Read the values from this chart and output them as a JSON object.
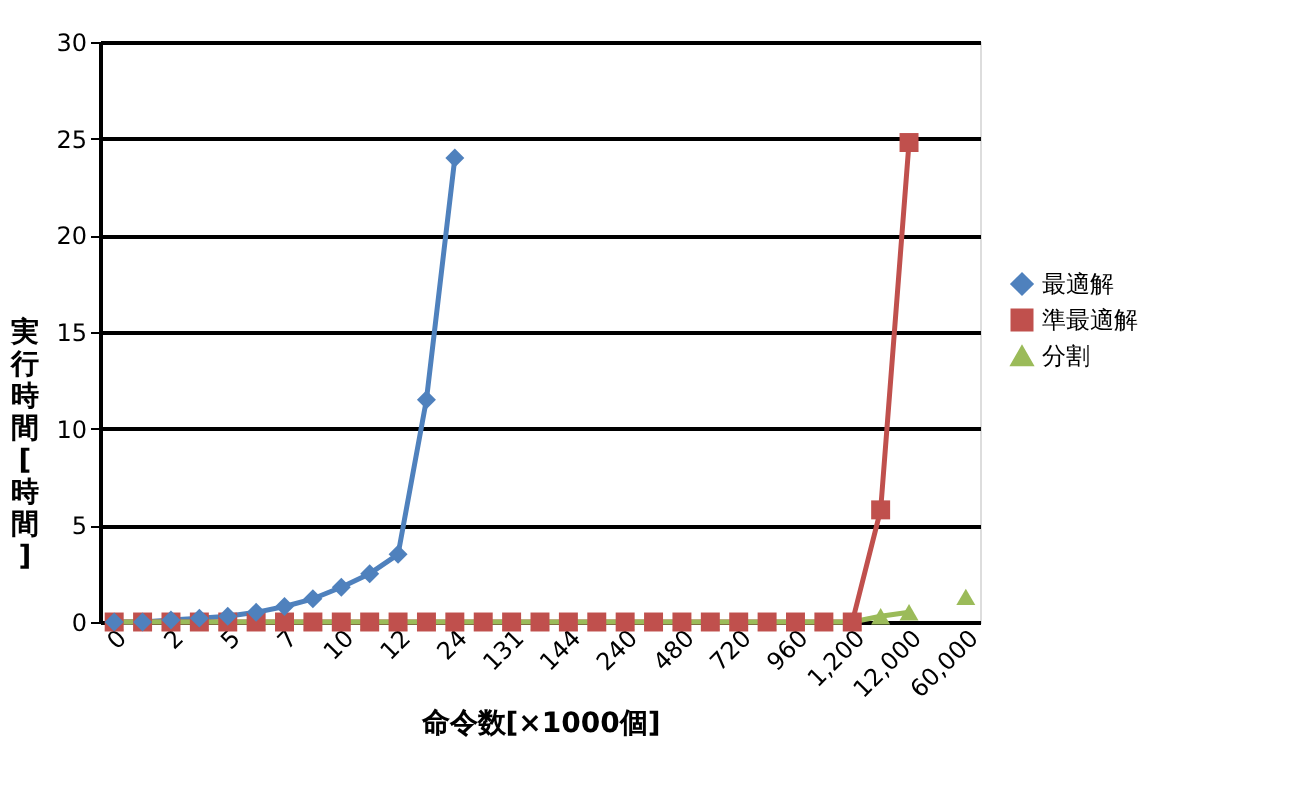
{
  "chart_data": {
    "type": "line",
    "xlabel": "命令数[×1000個]",
    "ylabel": "実行時間[時間]",
    "categories": [
      "0",
      null,
      "2",
      null,
      "5",
      null,
      "7",
      null,
      "10",
      null,
      "12",
      null,
      "24",
      null,
      "131",
      null,
      "144",
      null,
      "240",
      null,
      "480",
      null,
      "720",
      null,
      "960",
      null,
      "1,200",
      null,
      "12,000",
      null,
      "60,000"
    ],
    "series": [
      {
        "name": "最適解",
        "color": "#4f81bd",
        "marker": "diamond",
        "values": [
          0,
          0,
          0.1,
          0.2,
          0.3,
          0.5,
          0.8,
          1.2,
          1.8,
          2.5,
          3.5,
          11.5,
          24.0,
          null,
          null,
          null,
          null,
          null,
          null,
          null,
          null,
          null,
          null,
          null,
          null,
          null,
          null,
          null,
          null,
          null,
          null
        ]
      },
      {
        "name": "準最適解",
        "color": "#c0504d",
        "marker": "square",
        "values": [
          0,
          0,
          0,
          0,
          0,
          0,
          0,
          0,
          0,
          0,
          0,
          0,
          0,
          0,
          0,
          0,
          0,
          0,
          0,
          0,
          0,
          0,
          0,
          0,
          0,
          0,
          0,
          5.8,
          24.8,
          null,
          null
        ]
      },
      {
        "name": "分割",
        "color": "#9bbb59",
        "marker": "triangle",
        "values": [
          0,
          0,
          0,
          0,
          0,
          0,
          0,
          0,
          0,
          0,
          0,
          0,
          0,
          0,
          0,
          0,
          0,
          0,
          0,
          0,
          0,
          0,
          0,
          0,
          0,
          0,
          0,
          0.3,
          0.5,
          null,
          1.3
        ]
      }
    ],
    "ylim": [
      0,
      30
    ],
    "yticks": [
      0,
      5,
      10,
      15,
      20,
      25,
      30
    ],
    "grid": "y",
    "legend": "right"
  }
}
